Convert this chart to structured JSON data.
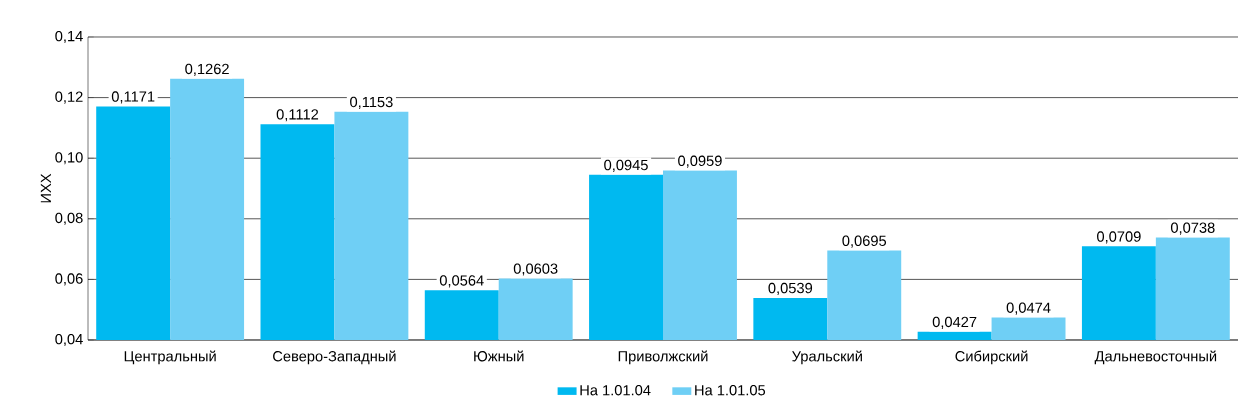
{
  "chart_data": {
    "type": "bar",
    "ylabel": "ИХХ",
    "categories": [
      "Центральный",
      "Северо-Западный",
      "Южный",
      "Приволжский",
      "Уральский",
      "Сибирский",
      "Дальневосточный"
    ],
    "series": [
      {
        "name": "На 1.01.04",
        "color": "#00b9f0",
        "values": [
          0.1171,
          0.1112,
          0.0564,
          0.0945,
          0.0539,
          0.0427,
          0.0709
        ],
        "value_labels": [
          "0,1171",
          "0,1112",
          "0,0564",
          "0,0945",
          "0,0539",
          "0,0427",
          "0,0709"
        ]
      },
      {
        "name": "На 1.01.05",
        "color": "#6fcff5",
        "values": [
          0.1262,
          0.1153,
          0.0603,
          0.0959,
          0.0695,
          0.0474,
          0.0738
        ],
        "value_labels": [
          "0,1262",
          "0,1153",
          "0,0603",
          "0,0959",
          "0,0695",
          "0,0474",
          "0,0738"
        ]
      }
    ],
    "ylim": [
      0.04,
      0.14
    ],
    "yticks": [
      {
        "value": 0.04,
        "label": "0,04"
      },
      {
        "value": 0.06,
        "label": "0,06"
      },
      {
        "value": 0.08,
        "label": "0,08"
      },
      {
        "value": 0.1,
        "label": "0,10"
      },
      {
        "value": 0.12,
        "label": "0,12"
      },
      {
        "value": 0.14,
        "label": "0,14"
      }
    ],
    "grid": "y",
    "legend": "bottom"
  }
}
